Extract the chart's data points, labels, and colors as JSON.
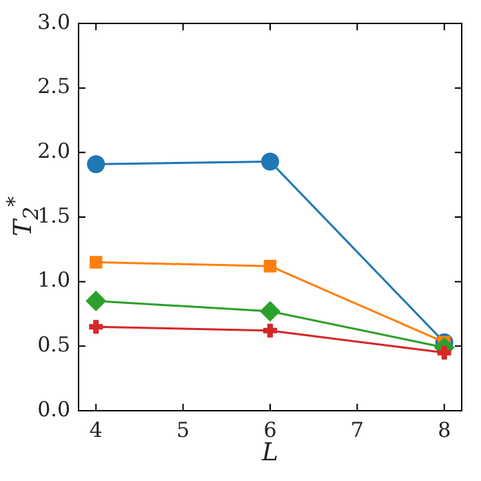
{
  "chart_data": {
    "type": "line",
    "xlabel": "L",
    "ylabel": "T$_{2}$$^{*}$",
    "x": [
      4,
      6,
      8
    ],
    "series": [
      {
        "color": "#1f77b4",
        "marker": "circle",
        "values": [
          1.91,
          1.93,
          0.53
        ]
      },
      {
        "color": "#ff7f0e",
        "marker": "square",
        "values": [
          1.15,
          1.12,
          0.53
        ]
      },
      {
        "color": "#2ca02c",
        "marker": "diamond",
        "values": [
          0.85,
          0.77,
          0.49
        ]
      },
      {
        "color": "#d62728",
        "marker": "cross",
        "values": [
          0.65,
          0.62,
          0.45
        ]
      }
    ],
    "xlim": [
      3.8,
      8.2
    ],
    "xticks": [
      4,
      5,
      6,
      7,
      8
    ],
    "ylim": [
      0,
      3
    ],
    "yticks": [
      {
        "value": 0,
        "label": "0.0"
      },
      {
        "value": 0.5,
        "label": "0.5"
      },
      {
        "value": 1,
        "label": "1.0"
      },
      {
        "value": 1.5,
        "label": "1.5"
      },
      {
        "value": 2,
        "label": "2.0"
      },
      {
        "value": 2.5,
        "label": "2.5"
      },
      {
        "value": 3,
        "label": "3.0"
      }
    ],
    "grid": false,
    "legend": false
  }
}
